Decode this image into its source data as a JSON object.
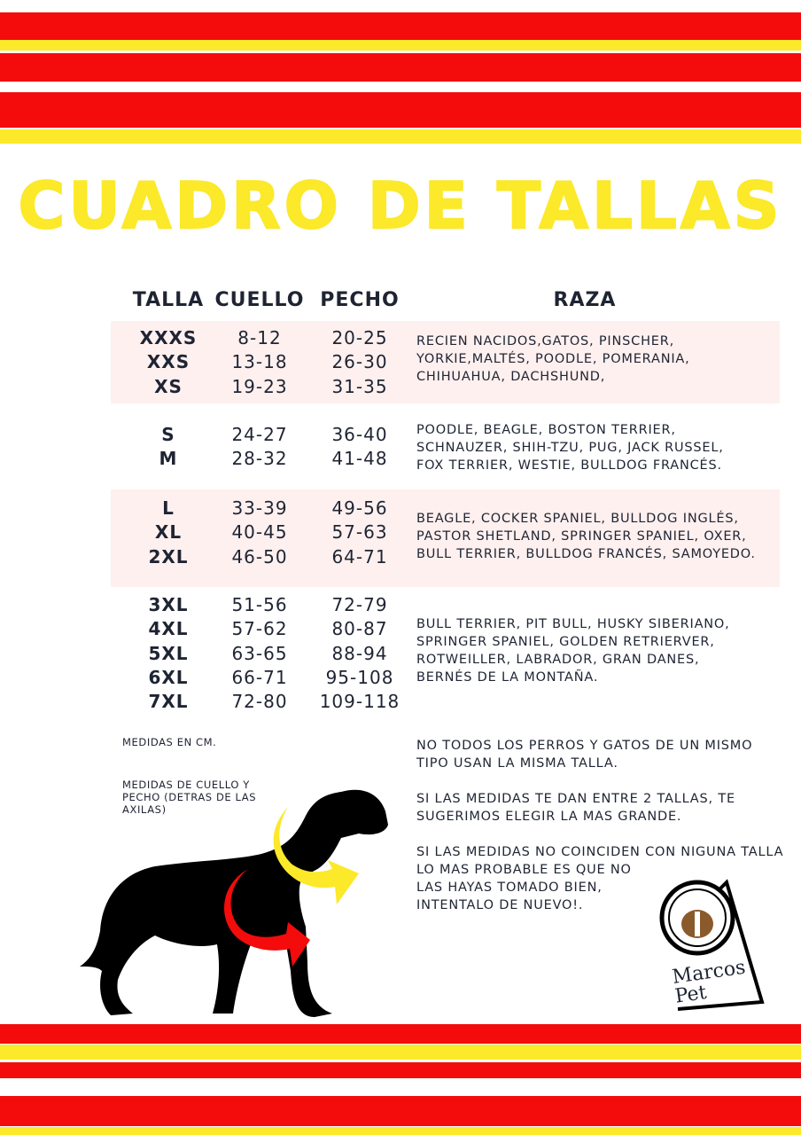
{
  "title": "CUADRO DE TALLAS",
  "headers": {
    "talla": "TALLA",
    "cuello": "CUELLO",
    "pecho": "PECHO",
    "raza": "RAZA"
  },
  "groups": [
    {
      "tallas": "XXXS\nXXS\nXS",
      "cuello": "8-12\n13-18\n19-23",
      "pecho": "20-25\n26-30\n31-35",
      "raza": "RECIEN NACIDOS,GATOS, PINSCHER,\nYORKIE,MALTÉS, POODLE, POMERANIA,\nCHIHUAHUA, DACHSHUND,"
    },
    {
      "tallas": "S\nM",
      "cuello": "24-27\n28-32",
      "pecho": "36-40\n41-48",
      "raza": "POODLE, BEAGLE, BOSTON TERRIER,\nSCHNAUZER, SHIH-TZU, PUG, JACK RUSSEL,\nFOX TERRIER, WESTIE, BULLDOG FRANCÉS."
    },
    {
      "tallas": "L\nXL\n2XL",
      "cuello": "33-39\n40-45\n46-50",
      "pecho": "49-56\n57-63\n64-71",
      "raza": "BEAGLE, COCKER SPANIEL, BULLDOG INGLÉS,\nPASTOR SHETLAND, SPRINGER SPANIEL, OXER,\nBULL TERRIER, BULLDOG FRANCÉS, SAMOYEDO."
    },
    {
      "tallas": "3XL\n4XL\n5XL\n6XL\n7XL",
      "cuello": "51-56\n57-62\n63-65\n66-71\n72-80",
      "pecho": "72-79\n80-87\n88-94\n95-108\n109-118",
      "raza": "BULL TERRIER, PIT BULL, HUSKY SIBERIANO,\nSPRINGER SPANIEL, GOLDEN RETRIERVER,\nROTWEILLER, LABRADOR, GRAN DANES,\nBERNÉS DE LA MONTAÑA."
    }
  ],
  "notes_left": {
    "units": "MEDIDAS EN CM.",
    "measure": "MEDIDAS DE CUELLO Y PECHO (DETRAS DE LAS AXILAS)"
  },
  "notes_right": [
    "NO TODOS LOS PERROS Y GATOS DE UN MISMO TIPO USAN LA MISMA TALLA.",
    "SI LAS MEDIDAS TE DAN ENTRE 2 TALLAS, TE SUGERIMOS ELEGIR LA MAS GRANDE.",
    "SI LAS MEDIDAS NO COINCIDEN CON NIGUNA TALLA LO MAS PROBABLE ES QUE NO\nLAS HAYAS TOMADO BIEN,\nINTENTALO DE NUEVO!."
  ],
  "logo": "Marcos Pet",
  "colors": {
    "red": "#f40b0b",
    "yellow": "#fbe92a",
    "band": "#fdf0ef",
    "text": "#1f2433"
  }
}
